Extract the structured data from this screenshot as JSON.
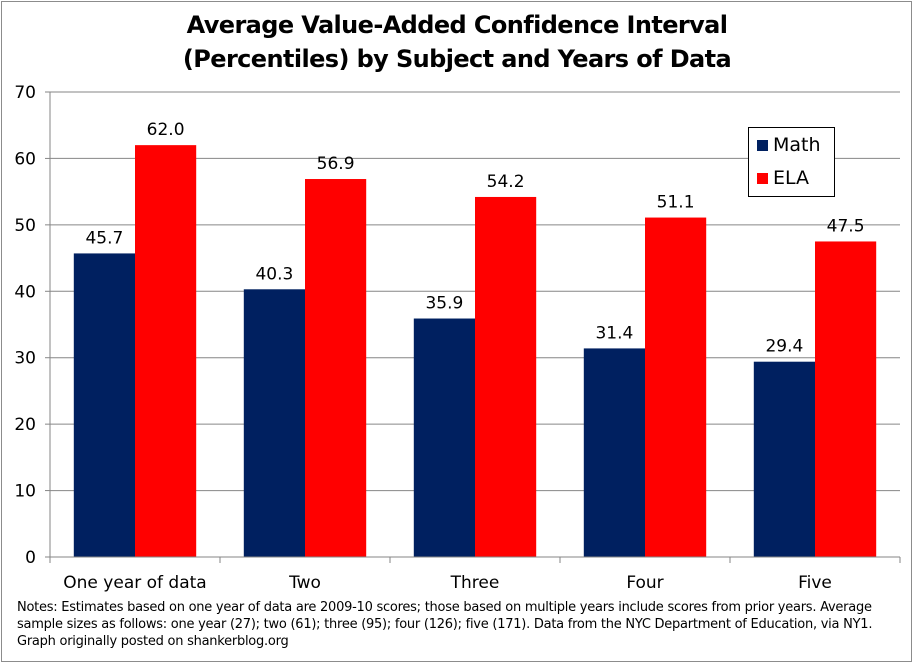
{
  "chart_data": {
    "type": "bar",
    "title": "Average Value-Added Confidence Interval (Percentiles) by Subject and Years of Data",
    "title_lines": [
      "Average Value-Added Confidence Interval",
      "(Percentiles) by Subject and Years of Data"
    ],
    "xlabel": "",
    "ylabel": "",
    "categories": [
      "One year of data",
      "Two",
      "Three",
      "Four",
      "Five"
    ],
    "series": [
      {
        "name": "Math",
        "color": "#002060",
        "values": [
          45.7,
          40.3,
          35.9,
          31.4,
          29.4
        ],
        "labels": [
          "45.7",
          "40.3",
          "35.9",
          "31.4",
          "29.4"
        ]
      },
      {
        "name": "ELA",
        "color": "#ff0000",
        "values": [
          62.0,
          56.9,
          54.2,
          51.1,
          47.5
        ],
        "labels": [
          "62.0",
          "56.9",
          "54.2",
          "51.1",
          "47.5"
        ]
      }
    ],
    "ylim": [
      0,
      70
    ],
    "yticks": [
      0,
      10,
      20,
      30,
      40,
      50,
      60,
      70
    ],
    "ytick_labels": [
      "0",
      "10",
      "20",
      "30",
      "40",
      "50",
      "60",
      "70"
    ],
    "grid": true,
    "legend_position": "top-right",
    "data_labels": true
  },
  "legend": {
    "items": [
      {
        "label": "Math",
        "color": "#002060"
      },
      {
        "label": "ELA",
        "color": "#ff0000"
      }
    ]
  },
  "notes": "Notes: Estimates based on one year of data are 2009-10 scores; those based on multiple years include scores from prior years. Average sample sizes as follows: one year (27); two (61); three (95); four (126); five (171). Data from the NYC Department of Education, via NY1. Graph originally posted on shankerblog.org"
}
